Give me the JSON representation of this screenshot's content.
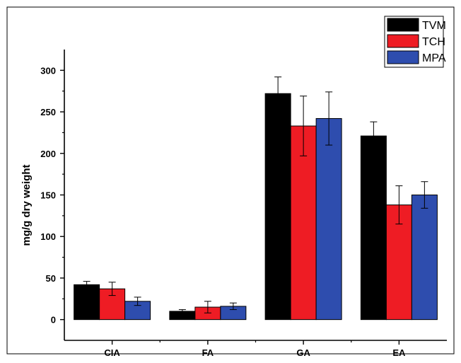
{
  "chart_data": {
    "type": "bar",
    "title": "",
    "xlabel": "",
    "ylabel": "mg/g dry weight",
    "ylim": [
      -25,
      325
    ],
    "yticks": [
      0,
      50,
      100,
      150,
      200,
      250,
      300
    ],
    "grid": false,
    "legend_position": "top-right",
    "categories": [
      "CIA",
      "FA",
      "GA",
      "EA"
    ],
    "series": [
      {
        "name": "TVM",
        "color": "#000000",
        "values": [
          42,
          10,
          272,
          221
        ],
        "errors": [
          4,
          2,
          20,
          17
        ]
      },
      {
        "name": "TCH",
        "color": "#ee1c24",
        "values": [
          37,
          15,
          233,
          138
        ],
        "errors": [
          8,
          7,
          36,
          23
        ]
      },
      {
        "name": "MPA",
        "color": "#2e4dae",
        "values": [
          22,
          16,
          242,
          150
        ],
        "errors": [
          5,
          4,
          32,
          16
        ]
      }
    ]
  }
}
